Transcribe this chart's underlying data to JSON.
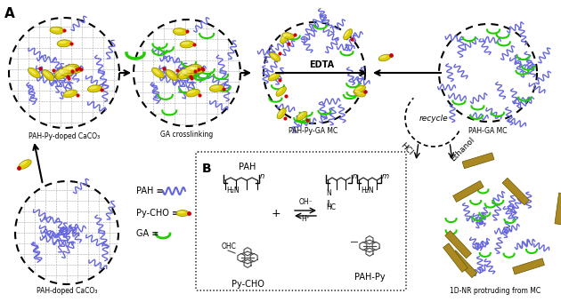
{
  "title_A": "A",
  "title_B": "B",
  "label_1": "PAH-Py-doped CaCO₃",
  "label_2": "GA crosslinking",
  "label_3": "PAH-Py-GA MC",
  "label_4": "PAH-GA MC",
  "label_5": "recycle",
  "label_6": "HCl",
  "label_7": "Ethanol",
  "label_8": "1D-NR protruding from MC",
  "label_9": "PAH-doped CaCO₃",
  "label_pah": "PAH ≡",
  "label_pycho": "Py-CHO ≡",
  "label_ga": "GA ≡",
  "label_edta": "EDTA",
  "label_pah_struct": "PAH",
  "label_pycho_struct": "Py-CHO",
  "label_pahpy_struct": "PAH-Py",
  "label_oh": "OH⁻",
  "label_h": "H⁺",
  "label_h2n": "H₂N",
  "label_ohc": "OHC",
  "label_hc": "HC",
  "label_imine": "N",
  "label_plus": "+",
  "color_blue": "#6666dd",
  "color_green": "#22cc00",
  "color_yellow": "#ddcc00",
  "color_gold": "#aa8800",
  "color_red": "#cc0000",
  "color_black": "#000000",
  "color_white": "#ffffff",
  "color_gray": "#888888",
  "bg_color": "#ffffff"
}
